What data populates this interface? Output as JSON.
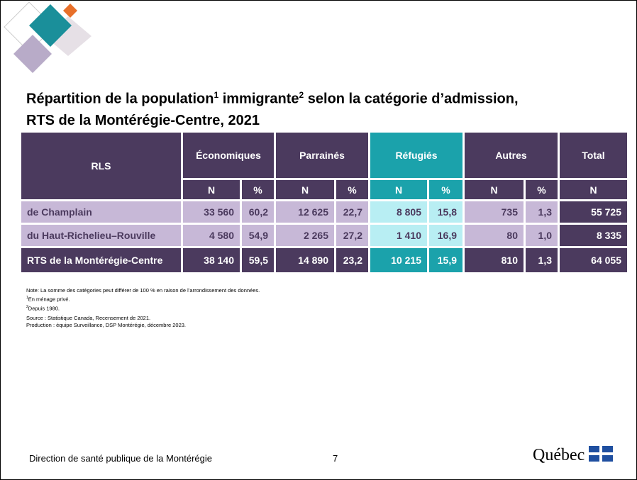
{
  "title": {
    "part1": "Répartition de la population",
    "sup1": "1",
    "part2": "immigrante",
    "sup2": "2",
    "part3": "selon la catégorie d’admission,",
    "line2": "RTS de la Montérégie-Centre, 2021"
  },
  "table": {
    "rls_header": "RLS",
    "groups": [
      "Économiques",
      "Parrainés",
      "Réfugiés",
      "Autres",
      "Total"
    ],
    "sub": [
      "N",
      "%",
      "N",
      "%",
      "N",
      "%",
      "N",
      "%",
      "N"
    ],
    "rows": [
      [
        "de Champlain",
        "33 560",
        "60,2",
        "12 625",
        "22,7",
        "8 805",
        "15,8",
        "735",
        "1,3",
        "55 725"
      ],
      [
        "du Haut-Richelieu–Rouville",
        "4 580",
        "54,9",
        "2 265",
        "27,2",
        "1 410",
        "16,9",
        "80",
        "1,0",
        "8 335"
      ],
      [
        "RTS de la Montérégie-Centre",
        "38 140",
        "59,5",
        "14 890",
        "23,2",
        "10 215",
        "15,9",
        "810",
        "1,3",
        "64 055"
      ]
    ]
  },
  "notes": {
    "note": "Note: La somme des catégories peut différer de 100 % en raison de l’arrondissement des données.",
    "footnotes": [
      {
        "marker": "1",
        "text": "En ménage privé."
      },
      {
        "marker": "2",
        "text": "Depuis 1980."
      }
    ],
    "source": "Source : Statistique Canada, Recensement de 2021.",
    "production": "Production : équipe Surveillance, DSP Montérégie, décembre 2023."
  },
  "footer": {
    "org": "Direction de santé publique de la Montérégie",
    "page": "7",
    "logo": "Québec"
  }
}
